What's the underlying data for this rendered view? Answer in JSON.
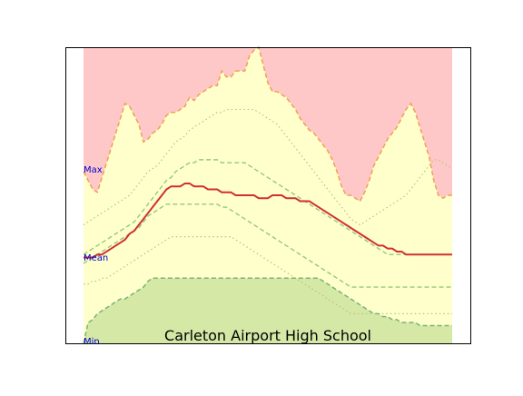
{
  "chart_data": {
    "type": "area",
    "title": "Carleton Airport High School",
    "xlabel": "",
    "ylabel": "",
    "grid": false,
    "ylim": [
      0,
      1
    ],
    "colors": {
      "max_fill": "#ffc8c8",
      "band_fill": "#ffffcc",
      "min_fill": "#d6e8a6",
      "max_line": "#f0a050",
      "min_line": "#78b478",
      "mean_line": "#d03030",
      "dashed": "#98c878",
      "dotted": "#b0c878",
      "label": "#0000cc"
    },
    "band_labels": {
      "max": "Max",
      "mean": "Mean",
      "min": "Min"
    },
    "x": [
      0,
      1,
      2,
      3,
      4,
      5,
      6,
      7,
      8,
      9,
      10,
      11,
      12,
      13,
      14,
      15,
      16,
      17,
      18,
      19,
      20,
      21,
      22,
      23,
      24,
      25,
      26,
      27,
      28,
      29,
      30,
      31,
      32,
      33,
      34,
      35,
      36,
      37,
      38,
      39,
      40,
      41,
      42,
      43,
      44,
      45,
      46,
      47,
      48,
      49,
      50,
      51,
      52,
      53,
      54,
      55,
      56,
      57,
      58,
      59,
      60,
      61,
      62,
      63,
      64,
      65,
      66,
      67,
      68,
      69,
      70,
      71,
      72,
      73,
      74,
      75,
      76,
      77,
      78,
      79,
      80
    ],
    "series": [
      {
        "key": "max",
        "values": [
          0.58,
          0.55,
          0.52,
          0.51,
          0.56,
          0.61,
          0.66,
          0.71,
          0.76,
          0.81,
          0.8,
          0.77,
          0.74,
          0.68,
          0.69,
          0.71,
          0.72,
          0.74,
          0.77,
          0.78,
          0.78,
          0.79,
          0.8,
          0.83,
          0.82,
          0.84,
          0.85,
          0.86,
          0.87,
          0.87,
          0.92,
          0.9,
          0.9,
          0.92,
          0.92,
          0.92,
          0.97,
          0.99,
          1.0,
          0.94,
          0.88,
          0.85,
          0.85,
          0.84,
          0.83,
          0.81,
          0.79,
          0.76,
          0.74,
          0.72,
          0.71,
          0.69,
          0.67,
          0.65,
          0.62,
          0.58,
          0.53,
          0.5,
          0.5,
          0.49,
          0.48,
          0.51,
          0.55,
          0.6,
          0.63,
          0.66,
          0.69,
          0.71,
          0.73,
          0.76,
          0.79,
          0.81,
          0.78,
          0.73,
          0.68,
          0.63,
          0.55,
          0.5,
          0.49,
          0.5,
          0.5
        ]
      },
      {
        "key": "upper_dotted",
        "values": [
          0.4,
          0.41,
          0.42,
          0.43,
          0.44,
          0.45,
          0.46,
          0.47,
          0.48,
          0.49,
          0.5,
          0.52,
          0.54,
          0.56,
          0.58,
          0.59,
          0.6,
          0.62,
          0.64,
          0.66,
          0.68,
          0.69,
          0.7,
          0.72,
          0.73,
          0.74,
          0.75,
          0.76,
          0.77,
          0.78,
          0.78,
          0.79,
          0.79,
          0.79,
          0.79,
          0.79,
          0.79,
          0.79,
          0.78,
          0.77,
          0.76,
          0.75,
          0.74,
          0.72,
          0.7,
          0.68,
          0.66,
          0.64,
          0.62,
          0.6,
          0.58,
          0.56,
          0.54,
          0.52,
          0.5,
          0.48,
          0.46,
          0.44,
          0.42,
          0.41,
          0.4,
          0.41,
          0.42,
          0.43,
          0.44,
          0.45,
          0.46,
          0.47,
          0.48,
          0.49,
          0.5,
          0.52,
          0.54,
          0.56,
          0.58,
          0.6,
          0.62,
          0.62,
          0.61,
          0.6,
          0.59
        ]
      },
      {
        "key": "upper_dashed",
        "values": [
          0.3,
          0.31,
          0.32,
          0.33,
          0.34,
          0.35,
          0.36,
          0.37,
          0.38,
          0.39,
          0.4,
          0.41,
          0.43,
          0.45,
          0.47,
          0.49,
          0.51,
          0.53,
          0.55,
          0.56,
          0.58,
          0.59,
          0.6,
          0.61,
          0.61,
          0.62,
          0.62,
          0.62,
          0.62,
          0.62,
          0.61,
          0.61,
          0.61,
          0.61,
          0.61,
          0.61,
          0.6,
          0.59,
          0.58,
          0.57,
          0.56,
          0.55,
          0.54,
          0.53,
          0.52,
          0.51,
          0.5,
          0.49,
          0.48,
          0.47,
          0.46,
          0.45,
          0.44,
          0.43,
          0.42,
          0.41,
          0.4,
          0.39,
          0.38,
          0.37,
          0.36,
          0.35,
          0.34,
          0.33,
          0.32,
          0.31,
          0.3,
          0.3,
          0.3,
          0.3,
          0.3,
          0.3,
          0.3,
          0.3,
          0.3,
          0.3,
          0.3,
          0.3,
          0.3,
          0.3,
          0.3
        ]
      },
      {
        "key": "mean",
        "values": [
          0.29,
          0.29,
          0.29,
          0.3,
          0.3,
          0.31,
          0.32,
          0.33,
          0.34,
          0.35,
          0.37,
          0.38,
          0.4,
          0.42,
          0.44,
          0.46,
          0.48,
          0.5,
          0.52,
          0.53,
          0.53,
          0.53,
          0.54,
          0.54,
          0.53,
          0.53,
          0.53,
          0.52,
          0.52,
          0.52,
          0.51,
          0.51,
          0.51,
          0.5,
          0.5,
          0.5,
          0.5,
          0.5,
          0.49,
          0.49,
          0.49,
          0.5,
          0.5,
          0.5,
          0.49,
          0.49,
          0.49,
          0.48,
          0.48,
          0.48,
          0.47,
          0.46,
          0.45,
          0.44,
          0.43,
          0.42,
          0.41,
          0.4,
          0.39,
          0.38,
          0.37,
          0.36,
          0.35,
          0.34,
          0.33,
          0.33,
          0.32,
          0.32,
          0.31,
          0.31,
          0.3,
          0.3,
          0.3,
          0.3,
          0.3,
          0.3,
          0.3,
          0.3,
          0.3,
          0.3,
          0.3
        ]
      },
      {
        "key": "lower_dashed",
        "values": [
          0.27,
          0.28,
          0.29,
          0.3,
          0.31,
          0.32,
          0.33,
          0.34,
          0.35,
          0.36,
          0.37,
          0.38,
          0.39,
          0.41,
          0.43,
          0.44,
          0.45,
          0.46,
          0.47,
          0.47,
          0.47,
          0.47,
          0.47,
          0.47,
          0.47,
          0.47,
          0.47,
          0.47,
          0.47,
          0.47,
          0.46,
          0.46,
          0.45,
          0.44,
          0.43,
          0.42,
          0.41,
          0.4,
          0.39,
          0.38,
          0.37,
          0.36,
          0.35,
          0.34,
          0.33,
          0.32,
          0.31,
          0.3,
          0.29,
          0.28,
          0.27,
          0.26,
          0.25,
          0.24,
          0.23,
          0.22,
          0.21,
          0.2,
          0.19,
          0.19,
          0.19,
          0.19,
          0.19,
          0.19,
          0.19,
          0.19,
          0.19,
          0.19,
          0.19,
          0.19,
          0.19,
          0.19,
          0.19,
          0.19,
          0.19,
          0.19,
          0.19,
          0.19,
          0.19,
          0.19,
          0.19
        ]
      },
      {
        "key": "lower_dotted",
        "values": [
          0.2,
          0.2,
          0.21,
          0.21,
          0.22,
          0.22,
          0.23,
          0.24,
          0.25,
          0.26,
          0.27,
          0.28,
          0.29,
          0.3,
          0.31,
          0.32,
          0.33,
          0.34,
          0.35,
          0.36,
          0.36,
          0.36,
          0.36,
          0.36,
          0.36,
          0.36,
          0.36,
          0.36,
          0.36,
          0.36,
          0.36,
          0.36,
          0.36,
          0.35,
          0.34,
          0.33,
          0.32,
          0.31,
          0.3,
          0.29,
          0.28,
          0.27,
          0.26,
          0.25,
          0.24,
          0.23,
          0.22,
          0.21,
          0.2,
          0.19,
          0.18,
          0.17,
          0.16,
          0.15,
          0.14,
          0.13,
          0.12,
          0.11,
          0.1,
          0.1,
          0.1,
          0.1,
          0.1,
          0.1,
          0.1,
          0.1,
          0.1,
          0.1,
          0.1,
          0.1,
          0.1,
          0.1,
          0.1,
          0.1,
          0.1,
          0.1,
          0.1,
          0.1,
          0.1,
          0.1,
          0.1
        ]
      },
      {
        "key": "min",
        "values": [
          0.0,
          0.07,
          0.08,
          0.1,
          0.11,
          0.12,
          0.13,
          0.14,
          0.15,
          0.15,
          0.16,
          0.17,
          0.18,
          0.19,
          0.21,
          0.22,
          0.22,
          0.22,
          0.22,
          0.22,
          0.22,
          0.22,
          0.22,
          0.22,
          0.22,
          0.22,
          0.22,
          0.22,
          0.22,
          0.22,
          0.22,
          0.22,
          0.22,
          0.22,
          0.22,
          0.22,
          0.22,
          0.22,
          0.22,
          0.22,
          0.22,
          0.22,
          0.22,
          0.22,
          0.22,
          0.22,
          0.22,
          0.22,
          0.22,
          0.22,
          0.22,
          0.22,
          0.21,
          0.2,
          0.19,
          0.18,
          0.17,
          0.16,
          0.15,
          0.14,
          0.13,
          0.12,
          0.11,
          0.1,
          0.1,
          0.09,
          0.09,
          0.08,
          0.08,
          0.07,
          0.07,
          0.07,
          0.07,
          0.06,
          0.06,
          0.06,
          0.06,
          0.06,
          0.06,
          0.06,
          0.06
        ]
      }
    ]
  }
}
